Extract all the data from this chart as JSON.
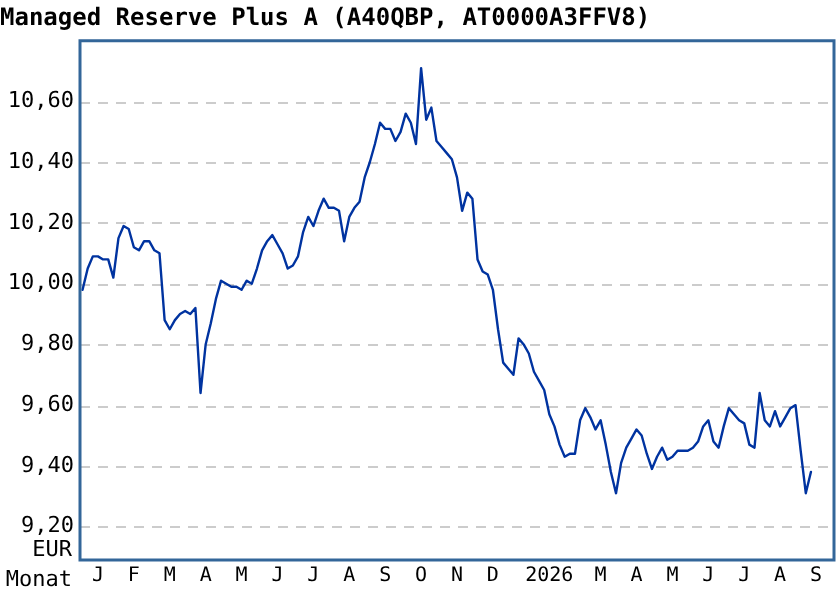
{
  "chart_data": {
    "type": "line",
    "title": "Managed Reserve Plus A (A40QBP, AT0000A3FFV8)",
    "xlabel": "Monat",
    "ylabel": "EUR",
    "categories": [
      null,
      null,
      null,
      "J",
      null,
      null,
      null,
      null,
      null,
      null,
      "F",
      null,
      null,
      null,
      null,
      null,
      null,
      "M",
      null,
      null,
      null,
      null,
      null,
      null,
      "A",
      null,
      null,
      null,
      null,
      null,
      null,
      "M",
      null,
      null,
      null,
      null,
      null,
      null,
      "J",
      null,
      null,
      null,
      null,
      null,
      null,
      "J",
      null,
      null,
      null,
      null,
      null,
      null,
      "A",
      null,
      null,
      null,
      null,
      null,
      null,
      "S",
      null,
      null,
      null,
      null,
      null,
      null,
      "O",
      null,
      null,
      null,
      null,
      null,
      null,
      "N",
      null,
      null,
      null,
      null,
      null,
      null,
      "D",
      null,
      null,
      null,
      null,
      null,
      null,
      null,
      null,
      null,
      null,
      "2026",
      null,
      null,
      null,
      null,
      null,
      null,
      null,
      null,
      null,
      "M",
      null,
      null,
      null,
      null,
      null,
      null,
      "A",
      null,
      null,
      null,
      null,
      null,
      null,
      "M",
      null,
      null,
      null,
      null,
      null,
      null,
      "J",
      null,
      null,
      null,
      null,
      null,
      null,
      "J",
      null,
      null,
      null,
      null,
      null,
      null,
      "A",
      null,
      null,
      null,
      null,
      null,
      null,
      "S",
      null,
      null,
      null
    ],
    "series": [
      {
        "color": "#0033a0",
        "values": [
          9.98,
          10.05,
          10.09,
          10.09,
          10.08,
          10.08,
          10.02,
          10.15,
          10.19,
          10.18,
          10.12,
          10.11,
          10.14,
          10.14,
          10.11,
          10.1,
          9.88,
          9.85,
          9.88,
          9.9,
          9.91,
          9.9,
          9.92,
          9.64,
          9.8,
          9.87,
          9.95,
          10.01,
          10.0,
          9.99,
          9.99,
          9.98,
          10.01,
          10.0,
          10.05,
          10.11,
          10.14,
          10.16,
          10.13,
          10.1,
          10.05,
          10.06,
          10.09,
          10.17,
          10.22,
          10.19,
          10.24,
          10.28,
          10.25,
          10.25,
          10.24,
          10.14,
          10.22,
          10.25,
          10.27,
          10.35,
          10.4,
          10.46,
          10.53,
          10.51,
          10.51,
          10.47,
          10.5,
          10.56,
          10.53,
          10.46,
          10.71,
          10.54,
          10.58,
          10.47,
          10.45,
          10.43,
          10.41,
          10.35,
          10.24,
          10.3,
          10.28,
          10.08,
          10.04,
          10.03,
          9.98,
          9.85,
          9.74,
          9.72,
          9.7,
          9.82,
          9.8,
          9.77,
          9.71,
          9.68,
          9.65,
          9.57,
          9.53,
          9.47,
          9.43,
          9.44,
          9.44,
          9.55,
          9.59,
          9.56,
          9.52,
          9.55,
          9.47,
          9.38,
          9.31,
          9.41,
          9.46,
          9.49,
          9.52,
          9.5,
          9.44,
          9.39,
          9.43,
          9.46,
          9.42,
          9.43,
          9.45,
          9.45,
          9.45,
          9.46,
          9.48,
          9.53,
          9.55,
          9.48,
          9.46,
          9.53,
          9.59,
          9.57,
          9.55,
          9.54,
          9.47,
          9.46,
          9.64,
          9.55,
          9.53,
          9.58,
          9.53,
          9.56,
          9.59,
          9.6,
          9.45,
          9.31,
          9.38,
          null,
          null,
          null,
          null
        ]
      }
    ],
    "ylim": [
      9.09,
      10.8
    ],
    "yticks": [
      {
        "value": 9.2,
        "label": "9,20"
      },
      {
        "value": 9.4,
        "label": "9,40"
      },
      {
        "value": 9.6,
        "label": "9,60"
      },
      {
        "value": 9.8,
        "label": "9,80"
      },
      {
        "value": 10.0,
        "label": "10,00"
      },
      {
        "value": 10.2,
        "label": "10,20"
      },
      {
        "value": 10.4,
        "label": "10,40"
      },
      {
        "value": 10.6,
        "label": "10,60"
      }
    ],
    "grid": "y",
    "line_style": "solid",
    "marker": "none",
    "legend": false
  }
}
